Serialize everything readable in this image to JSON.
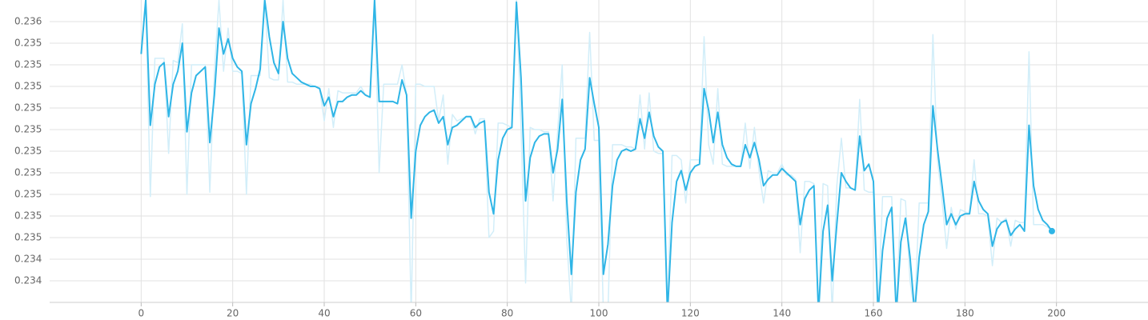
{
  "chart_data": {
    "type": "line",
    "x": [
      0,
      1,
      2,
      3,
      4,
      5,
      6,
      7,
      8,
      9,
      10,
      11,
      12,
      13,
      14,
      15,
      16,
      17,
      18,
      19,
      20,
      21,
      22,
      23,
      24,
      25,
      26,
      27,
      28,
      29,
      30,
      31,
      32,
      33,
      34,
      35,
      36,
      37,
      38,
      39,
      40,
      41,
      42,
      43,
      44,
      45,
      46,
      47,
      48,
      49,
      50,
      51,
      52,
      53,
      54,
      55,
      56,
      57,
      58,
      59,
      60,
      61,
      62,
      63,
      64,
      65,
      66,
      67,
      68,
      69,
      70,
      71,
      72,
      73,
      74,
      75,
      76,
      77,
      78,
      79,
      80,
      81,
      82,
      83,
      84,
      85,
      86,
      87,
      88,
      89,
      90,
      91,
      92,
      93,
      94,
      95,
      96,
      97,
      98,
      99,
      100,
      101,
      102,
      103,
      104,
      105,
      106,
      107,
      108,
      109,
      110,
      111,
      112,
      113,
      114,
      115,
      116,
      117,
      118,
      119,
      120,
      121,
      122,
      123,
      124,
      125,
      126,
      127,
      128,
      129,
      130,
      131,
      132,
      133,
      134,
      135,
      136,
      137,
      138,
      139,
      140,
      141,
      142,
      143,
      144,
      145,
      146,
      147,
      148,
      149,
      150,
      151,
      152,
      153,
      154,
      155,
      156,
      157,
      158,
      159,
      160,
      161,
      162,
      163,
      164,
      165,
      166,
      167,
      168,
      169,
      170,
      171,
      172,
      173,
      174,
      175,
      176,
      177,
      178,
      179,
      180,
      181,
      182,
      183,
      184,
      185,
      186,
      187,
      188,
      189,
      190,
      191,
      192,
      193,
      194,
      195,
      196,
      197,
      198,
      199
    ],
    "series": [
      {
        "color": "#d2eef9",
        "values": [
          0.2354,
          0.23565,
          0.23474,
          0.23538,
          0.23538,
          0.23538,
          0.23494,
          0.23537,
          0.23536,
          0.23554,
          0.23475,
          0.23535,
          0.23535,
          0.23535,
          0.23535,
          0.23476,
          0.23532,
          0.23565,
          0.23532,
          0.23552,
          0.23532,
          0.23532,
          0.23531,
          0.23475,
          0.2353,
          0.2353,
          0.2353,
          0.23565,
          0.23529,
          0.23528,
          0.23528,
          0.23565,
          0.23527,
          0.23527,
          0.23526,
          0.23526,
          0.23526,
          0.23526,
          0.23525,
          0.23524,
          0.23509,
          0.23524,
          0.23506,
          0.23523,
          0.23522,
          0.23522,
          0.23522,
          0.23522,
          0.23525,
          0.23521,
          0.2352,
          0.23565,
          0.23485,
          0.23526,
          0.23526,
          0.23526,
          0.23526,
          0.23535,
          0.23521,
          0.2342,
          0.23526,
          0.23526,
          0.23525,
          0.23525,
          0.23525,
          0.23509,
          0.23521,
          0.23489,
          0.23512,
          0.23509,
          0.2351,
          0.23511,
          0.23511,
          0.23503,
          0.2351,
          0.2351,
          0.23455,
          0.23458,
          0.23508,
          0.23508,
          0.23507,
          0.23506,
          0.23565,
          0.23506,
          0.23434,
          0.23506,
          0.23505,
          0.23505,
          0.23504,
          0.23504,
          0.23472,
          0.23504,
          0.23535,
          0.23454,
          0.2342,
          0.23501,
          0.23501,
          0.23501,
          0.2355,
          0.235,
          0.235,
          0.2342,
          0.2342,
          0.23498,
          0.23498,
          0.23498,
          0.23497,
          0.23497,
          0.23496,
          0.23521,
          0.23496,
          0.23522,
          0.23495,
          0.23494,
          0.23494,
          0.2342,
          0.23493,
          0.23493,
          0.23491,
          0.23471,
          0.23491,
          0.23491,
          0.23491,
          0.23548,
          0.23498,
          0.23489,
          0.23524,
          0.23489,
          0.23488,
          0.23488,
          0.23488,
          0.23488,
          0.23508,
          0.23487,
          0.23506,
          0.23486,
          0.23471,
          0.23486,
          0.23485,
          0.23485,
          0.23489,
          0.23484,
          0.23484,
          0.23482,
          0.23448,
          0.23481,
          0.23481,
          0.2348,
          0.2342,
          0.2348,
          0.23479,
          0.2342,
          0.23479,
          0.23501,
          0.23478,
          0.23478,
          0.23477,
          0.23519,
          0.23477,
          0.23476,
          0.23476,
          0.2342,
          0.23474,
          0.23474,
          0.23474,
          0.2342,
          0.23473,
          0.23472,
          0.23435,
          0.2342,
          0.23471,
          0.23471,
          0.23471,
          0.23549,
          0.23491,
          0.23472,
          0.2345,
          0.23469,
          0.23459,
          0.23468,
          0.23467,
          0.23466,
          0.23491,
          0.23466,
          0.23466,
          0.23465,
          0.23442,
          0.23464,
          0.23462,
          0.23464,
          0.23451,
          0.23463,
          0.23462,
          0.23462,
          0.23541,
          0.23461,
          0.23461,
          0.23461,
          0.2346,
          0.23458
        ]
      },
      {
        "color": "#2fb5e6",
        "values": [
          0.2354,
          0.23565,
          0.23507,
          0.23526,
          0.23534,
          0.23536,
          0.23511,
          0.23526,
          0.23532,
          0.23545,
          0.23504,
          0.23522,
          0.2353,
          0.23532,
          0.23534,
          0.23499,
          0.23521,
          0.23552,
          0.2354,
          0.23547,
          0.23538,
          0.23534,
          0.23532,
          0.23498,
          0.23517,
          0.23524,
          0.23533,
          0.23565,
          0.23548,
          0.23536,
          0.23531,
          0.23555,
          0.23538,
          0.23531,
          0.23529,
          0.23527,
          0.23526,
          0.23525,
          0.23525,
          0.23524,
          0.23516,
          0.2352,
          0.23511,
          0.23518,
          0.23518,
          0.2352,
          0.23521,
          0.23521,
          0.23523,
          0.23521,
          0.2352,
          0.23565,
          0.23518,
          0.23518,
          0.23518,
          0.23518,
          0.23517,
          0.23528,
          0.23521,
          0.23464,
          0.23495,
          0.23507,
          0.23511,
          0.23513,
          0.23514,
          0.23508,
          0.23511,
          0.23498,
          0.23506,
          0.23507,
          0.23509,
          0.23511,
          0.23511,
          0.23506,
          0.23508,
          0.23509,
          0.23476,
          0.23466,
          0.23491,
          0.23501,
          0.23505,
          0.23506,
          0.23564,
          0.23529,
          0.23472,
          0.23492,
          0.23499,
          0.23502,
          0.23503,
          0.23503,
          0.23485,
          0.23496,
          0.23519,
          0.23472,
          0.23438,
          0.23476,
          0.23491,
          0.23496,
          0.23529,
          0.23517,
          0.23506,
          0.23438,
          0.23452,
          0.23479,
          0.23491,
          0.23495,
          0.23496,
          0.23495,
          0.23496,
          0.2351,
          0.23501,
          0.23513,
          0.23502,
          0.23497,
          0.23495,
          0.2342,
          0.23462,
          0.23481,
          0.23486,
          0.23477,
          0.23485,
          0.23488,
          0.23489,
          0.23524,
          0.23514,
          0.23499,
          0.23513,
          0.23498,
          0.23492,
          0.23489,
          0.23488,
          0.23488,
          0.23498,
          0.23492,
          0.23499,
          0.23491,
          0.23479,
          0.23482,
          0.23484,
          0.23484,
          0.23487,
          0.23485,
          0.23483,
          0.23481,
          0.23461,
          0.23473,
          0.23477,
          0.23479,
          0.2342,
          0.23458,
          0.2347,
          0.23435,
          0.23461,
          0.23485,
          0.23481,
          0.23478,
          0.23477,
          0.23502,
          0.23486,
          0.23489,
          0.23481,
          0.2342,
          0.23449,
          0.23464,
          0.23469,
          0.2342,
          0.23453,
          0.23464,
          0.23446,
          0.2342,
          0.23446,
          0.23461,
          0.23467,
          0.23516,
          0.23496,
          0.23479,
          0.23461,
          0.23466,
          0.23461,
          0.23465,
          0.23466,
          0.23466,
          0.23481,
          0.23472,
          0.23468,
          0.23466,
          0.23451,
          0.23459,
          0.23462,
          0.23463,
          0.23456,
          0.23459,
          0.23461,
          0.23458,
          0.23507,
          0.23479,
          0.23468,
          0.23463,
          0.23461,
          0.23458
        ]
      }
    ],
    "xlim": [
      -20,
      220
    ],
    "xticks": [
      0,
      20,
      40,
      60,
      80,
      100,
      120,
      140,
      160,
      180,
      200
    ],
    "ylim": [
      0.23425,
      0.23565
    ],
    "yticks": [
      {
        "value": 0.23555,
        "label": "0.236"
      },
      {
        "value": 0.23545,
        "label": "0.235"
      },
      {
        "value": 0.23535,
        "label": "0.235"
      },
      {
        "value": 0.23525,
        "label": "0.235"
      },
      {
        "value": 0.23515,
        "label": "0.235"
      },
      {
        "value": 0.23505,
        "label": "0.235"
      },
      {
        "value": 0.23495,
        "label": "0.235"
      },
      {
        "value": 0.23485,
        "label": "0.235"
      },
      {
        "value": 0.23475,
        "label": "0.235"
      },
      {
        "value": 0.23465,
        "label": "0.235"
      },
      {
        "value": 0.23455,
        "label": "0.235"
      },
      {
        "value": 0.23445,
        "label": "0.234"
      },
      {
        "value": 0.23435,
        "label": "0.234"
      }
    ],
    "grid": true
  }
}
